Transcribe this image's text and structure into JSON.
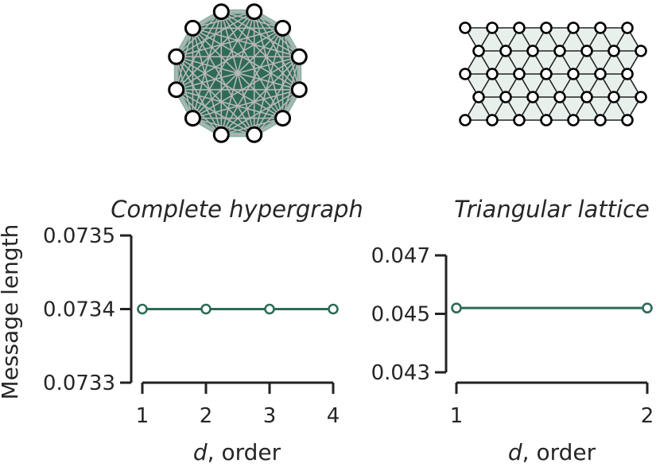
{
  "colors": {
    "series": "#2e6b57",
    "axis": "#222222",
    "hull_dense": "#2e6b57",
    "hull_light": "#e8f0ec",
    "edge_dense": "#b8b8b8",
    "node_fill": "#ffffff",
    "node_stroke": "#000000"
  },
  "ylabel": "Message length",
  "xlabel": {
    "var": "d",
    "rest": ", order"
  },
  "chart_data": [
    {
      "type": "line",
      "title": "Complete hypergraph",
      "xlabel": "d, order",
      "ylabel": "Message length",
      "x": [
        1,
        2,
        3,
        4
      ],
      "y": [
        0.0734,
        0.0734,
        0.0734,
        0.0734
      ],
      "xticks": [
        "1",
        "2",
        "3",
        "4"
      ],
      "yticks": [
        "0.0733",
        "0.0734",
        "0.0735"
      ],
      "ylim": [
        0.0733,
        0.0735
      ],
      "grid": false,
      "markers": "open-circle"
    },
    {
      "type": "line",
      "title": "Triangular lattice",
      "xlabel": "d, order",
      "ylabel": "",
      "x": [
        1,
        2
      ],
      "y": [
        0.0452,
        0.0452
      ],
      "xticks": [
        "1",
        "2"
      ],
      "yticks": [
        "0.043",
        "0.045",
        "0.047"
      ],
      "ylim": [
        0.043,
        0.047
      ],
      "grid": false,
      "markers": "open-circle"
    }
  ],
  "insets": [
    {
      "kind": "complete-hypergraph-icon",
      "nodes": 12
    },
    {
      "kind": "triangular-lattice-icon",
      "rows": 5,
      "cols": 7
    }
  ]
}
